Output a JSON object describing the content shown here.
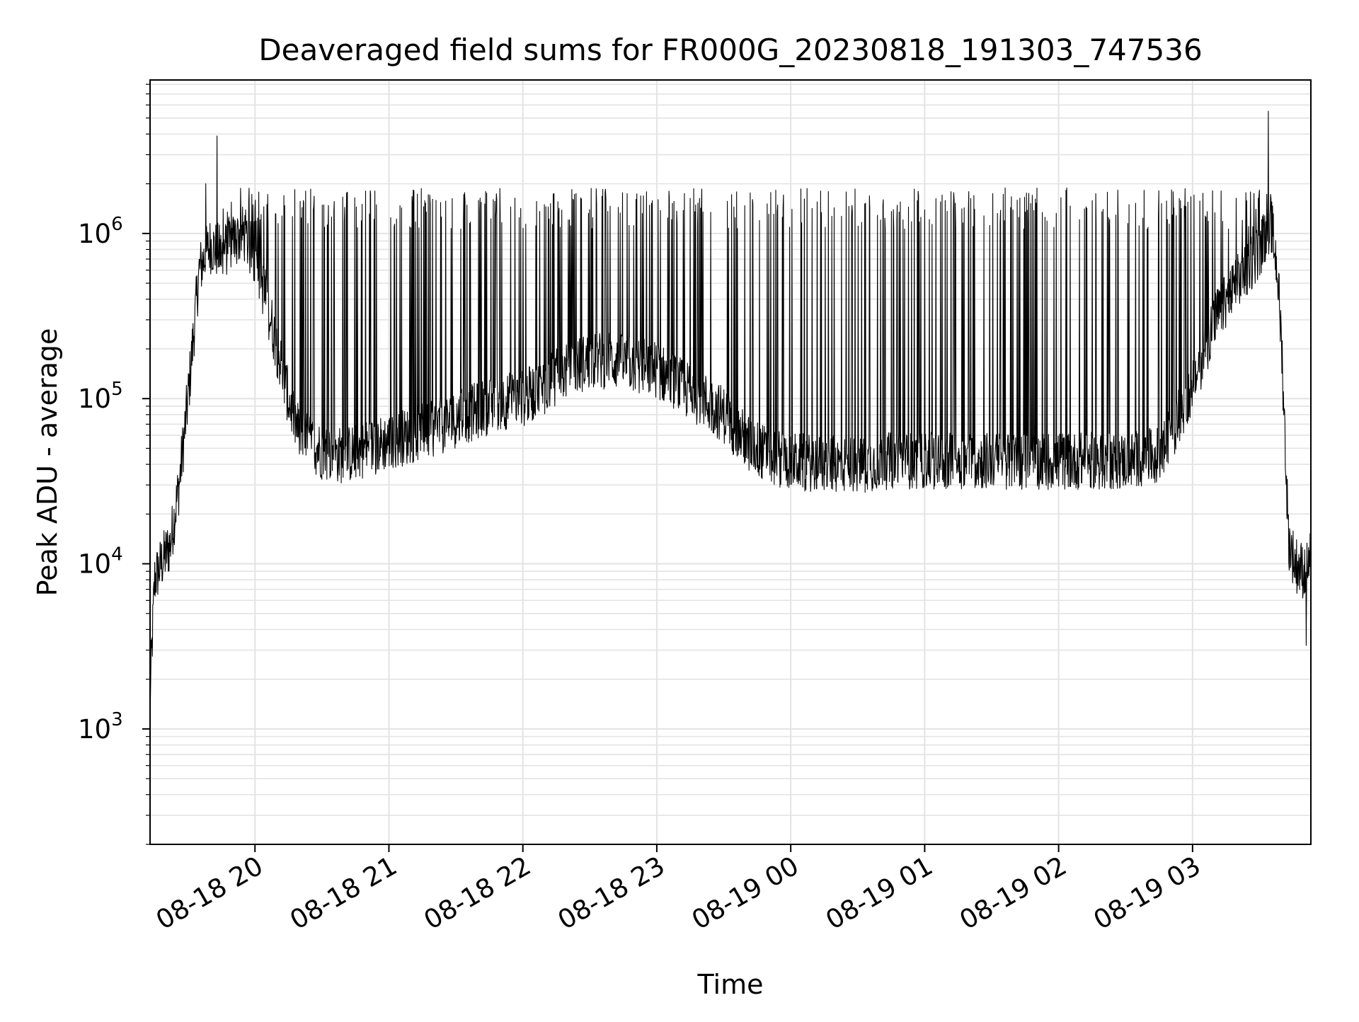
{
  "chart_data": {
    "type": "line",
    "title": "Deaveraged field sums for FR000G_20230818_191303_747536",
    "xlabel": "Time",
    "ylabel": "Peak ADU - average",
    "y_scale": "log",
    "ylim": [
      200,
      8500000
    ],
    "xlim": [
      "2023-08-18 19:13",
      "2023-08-19 03:53"
    ],
    "grid": true,
    "line_color": "#000000",
    "grid_color": "#e3e3e3",
    "x_ticks": [
      {
        "t": "2023-08-18 20:00",
        "label": "08-18 20"
      },
      {
        "t": "2023-08-18 21:00",
        "label": "08-18 21"
      },
      {
        "t": "2023-08-18 22:00",
        "label": "08-18 22"
      },
      {
        "t": "2023-08-18 23:00",
        "label": "08-18 23"
      },
      {
        "t": "2023-08-19 00:00",
        "label": "08-19 00"
      },
      {
        "t": "2023-08-19 01:00",
        "label": "08-19 01"
      },
      {
        "t": "2023-08-19 02:00",
        "label": "08-19 02"
      },
      {
        "t": "2023-08-19 03:00",
        "label": "08-19 03"
      }
    ],
    "y_ticks": [
      {
        "value": 1000,
        "base": "10",
        "exp": "3"
      },
      {
        "value": 10000,
        "base": "10",
        "exp": "4"
      },
      {
        "value": 100000,
        "base": "10",
        "exp": "5"
      },
      {
        "value": 1000000,
        "base": "10",
        "exp": "6"
      }
    ],
    "series": [
      {
        "baseline": {
          "x": [
            "2023-08-18 19:13",
            "2023-08-18 19:15",
            "2023-08-18 19:18",
            "2023-08-18 19:22",
            "2023-08-18 19:26",
            "2023-08-18 19:30",
            "2023-08-18 19:35",
            "2023-08-18 19:40",
            "2023-08-18 19:45",
            "2023-08-18 19:50",
            "2023-08-18 19:55",
            "2023-08-18 20:00",
            "2023-08-18 20:05",
            "2023-08-18 20:10",
            "2023-08-18 20:15",
            "2023-08-18 20:20",
            "2023-08-18 20:30",
            "2023-08-18 20:40",
            "2023-08-18 20:50",
            "2023-08-18 21:00",
            "2023-08-18 21:10",
            "2023-08-18 21:20",
            "2023-08-18 21:30",
            "2023-08-18 21:40",
            "2023-08-18 21:50",
            "2023-08-18 22:00",
            "2023-08-18 22:10",
            "2023-08-18 22:20",
            "2023-08-18 22:30",
            "2023-08-18 22:40",
            "2023-08-18 22:50",
            "2023-08-18 23:00",
            "2023-08-18 23:10",
            "2023-08-18 23:20",
            "2023-08-18 23:30",
            "2023-08-18 23:40",
            "2023-08-18 23:50",
            "2023-08-19 00:00",
            "2023-08-19 00:15",
            "2023-08-19 00:30",
            "2023-08-19 00:45",
            "2023-08-19 01:00",
            "2023-08-19 01:15",
            "2023-08-19 01:30",
            "2023-08-19 01:45",
            "2023-08-19 02:00",
            "2023-08-19 02:15",
            "2023-08-19 02:30",
            "2023-08-19 02:45",
            "2023-08-19 02:50",
            "2023-08-19 03:00",
            "2023-08-19 03:10",
            "2023-08-19 03:20",
            "2023-08-19 03:30",
            "2023-08-19 03:35",
            "2023-08-19 03:38",
            "2023-08-19 03:40",
            "2023-08-19 03:43",
            "2023-08-19 03:46",
            "2023-08-19 03:50",
            "2023-08-19 03:53"
          ],
          "y": [
            1500,
            8000,
            10000,
            13000,
            30000,
            100000,
            600000,
            850000,
            750000,
            900000,
            1000000,
            700000,
            400000,
            200000,
            100000,
            60000,
            48000,
            45000,
            50000,
            55000,
            60000,
            65000,
            75000,
            85000,
            95000,
            100000,
            120000,
            150000,
            170000,
            170000,
            160000,
            150000,
            120000,
            100000,
            80000,
            55000,
            45000,
            42000,
            40000,
            40000,
            42000,
            42000,
            42000,
            42000,
            42000,
            42000,
            42000,
            42000,
            45000,
            60000,
            120000,
            300000,
            500000,
            800000,
            1200000,
            600000,
            200000,
            14000,
            10000,
            9000,
            11000
          ]
        },
        "spike_band": {
          "start": "2023-08-18 19:45",
          "end": "2023-08-19 03:35",
          "typical_peak": 1500000,
          "count": 420
        },
        "outliers": [
          {
            "x": "2023-08-18 19:38",
            "y": 2000000
          },
          {
            "x": "2023-08-18 19:43",
            "y": 3900000
          },
          {
            "x": "2023-08-19 03:34",
            "y": 5500000
          },
          {
            "x": "2023-08-19 03:51",
            "y": 3200
          }
        ]
      }
    ]
  }
}
